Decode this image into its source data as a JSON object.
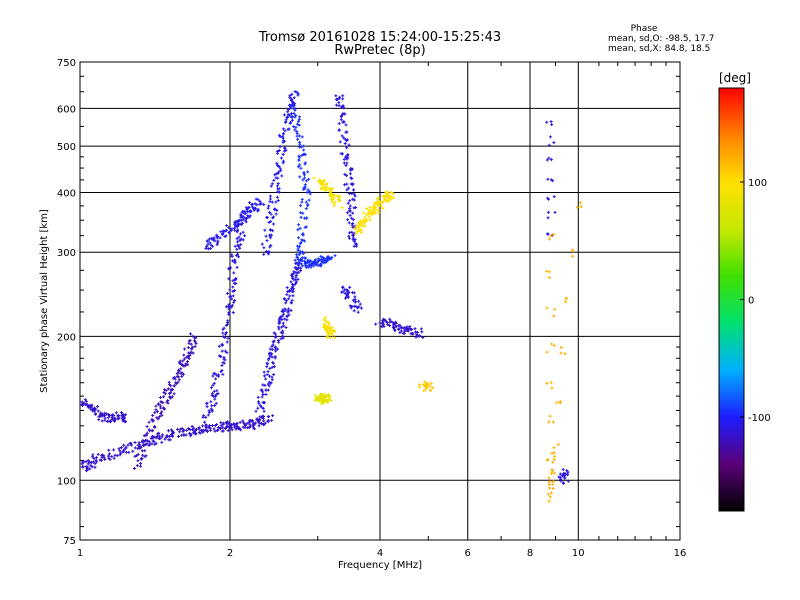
{
  "chart_data": {
    "type": "scatter",
    "title": "Tromsø 20161028 15:24:00-15:25:43",
    "subtitle": "RwPretec (8p)",
    "xlabel": "Frequency [MHz]",
    "ylabel": "Stationary phase Virtual Height [km]",
    "x_scale": "log",
    "y_scale": "log",
    "xlim": [
      1,
      16
    ],
    "ylim": [
      75,
      750
    ],
    "x_ticks": [
      1,
      2,
      4,
      6,
      8,
      10,
      16
    ],
    "x_ticklabels": [
      "1",
      "2",
      "4",
      "6",
      "8",
      "10",
      "16"
    ],
    "y_ticks": [
      75,
      100,
      200,
      300,
      400,
      500,
      600,
      750
    ],
    "y_ticklabels": [
      "75",
      "100",
      "200",
      "300",
      "400",
      "500",
      "600",
      "750"
    ],
    "grid": true,
    "phase_legend": {
      "title": "Phase",
      "line1": "mean, sd,O:  -98.5,  17.7",
      "line2": "mean, sd,X:  84.8,  18.5"
    },
    "colorbar": {
      "label": "[deg]",
      "range": [
        -180,
        180
      ],
      "ticks": [
        -100,
        0,
        100
      ],
      "ticklabels": [
        "-100",
        "0",
        "100"
      ],
      "colormap": [
        "#000000",
        "#5a007a",
        "#1d1dff",
        "#00b0ff",
        "#00e070",
        "#40e000",
        "#c8e800",
        "#ffe000",
        "#ff8000",
        "#ff0000"
      ]
    },
    "traces": [
      {
        "name": "",
        "phase": -115,
        "points": [
          [
            1.0,
            146
          ],
          [
            1.05,
            142
          ],
          [
            1.1,
            136
          ],
          [
            1.15,
            135
          ],
          [
            1.2,
            136
          ],
          [
            1.22,
            135
          ]
        ]
      },
      {
        "name": "",
        "phase": -115,
        "points": [
          [
            1.0,
            106
          ],
          [
            1.05,
            108
          ],
          [
            1.1,
            112
          ],
          [
            1.2,
            115
          ],
          [
            1.3,
            118
          ],
          [
            1.4,
            121
          ],
          [
            1.5,
            124
          ],
          [
            1.6,
            126
          ],
          [
            1.7,
            127
          ],
          [
            1.8,
            128
          ],
          [
            1.9,
            129
          ],
          [
            2.0,
            130
          ],
          [
            2.1,
            130
          ],
          [
            2.2,
            131
          ],
          [
            2.3,
            132
          ],
          [
            2.4,
            136
          ]
        ]
      },
      {
        "name": "",
        "phase": -120,
        "points": [
          [
            1.3,
            108
          ],
          [
            1.35,
            118
          ],
          [
            1.4,
            130
          ],
          [
            1.45,
            142
          ],
          [
            1.5,
            150
          ],
          [
            1.55,
            160
          ],
          [
            1.6,
            172
          ],
          [
            1.65,
            185
          ],
          [
            1.7,
            200
          ]
        ]
      },
      {
        "name": "",
        "phase": -110,
        "points": [
          [
            1.8,
            135
          ],
          [
            1.85,
            150
          ],
          [
            1.9,
            170
          ],
          [
            1.95,
            195
          ],
          [
            2.0,
            230
          ],
          [
            2.02,
            260
          ],
          [
            2.05,
            300
          ],
          [
            2.1,
            330
          ],
          [
            2.15,
            370
          ]
        ]
      },
      {
        "name": "",
        "phase": -110,
        "points": [
          [
            2.3,
            140
          ],
          [
            2.35,
            155
          ],
          [
            2.4,
            170
          ],
          [
            2.45,
            185
          ],
          [
            2.5,
            200
          ],
          [
            2.55,
            215
          ],
          [
            2.6,
            230
          ],
          [
            2.65,
            250
          ],
          [
            2.7,
            270
          ],
          [
            2.75,
            285
          ]
        ]
      },
      {
        "name": "",
        "phase": -105,
        "points": [
          [
            2.35,
            300
          ],
          [
            2.4,
            340
          ],
          [
            2.45,
            390
          ],
          [
            2.5,
            440
          ],
          [
            2.55,
            500
          ],
          [
            2.6,
            560
          ],
          [
            2.65,
            610
          ],
          [
            2.7,
            640
          ]
        ]
      },
      {
        "name": "",
        "phase": -95,
        "points": [
          [
            2.7,
            600
          ],
          [
            2.75,
            520
          ],
          [
            2.8,
            450
          ],
          [
            2.85,
            400
          ],
          [
            2.8,
            340
          ],
          [
            2.75,
            300
          ],
          [
            2.8,
            285
          ],
          [
            2.9,
            282
          ],
          [
            3.0,
            285
          ],
          [
            3.1,
            288
          ],
          [
            3.2,
            292
          ]
        ]
      },
      {
        "name": "",
        "phase": -110,
        "points": [
          [
            3.3,
            640
          ],
          [
            3.35,
            580
          ],
          [
            3.4,
            500
          ],
          [
            3.45,
            440
          ],
          [
            3.5,
            390
          ],
          [
            3.52,
            340
          ],
          [
            3.55,
            310
          ]
        ]
      },
      {
        "name": "",
        "phase": -105,
        "points": [
          [
            1.8,
            310
          ],
          [
            1.9,
            320
          ],
          [
            2.0,
            335
          ],
          [
            2.1,
            350
          ],
          [
            2.2,
            370
          ],
          [
            2.3,
            380
          ]
        ]
      },
      {
        "name": "",
        "phase": 95,
        "points": [
          [
            3.0,
            420
          ],
          [
            3.1,
            410
          ],
          [
            3.2,
            395
          ],
          [
            3.3,
            380
          ]
        ]
      },
      {
        "name": "",
        "phase": 100,
        "points": [
          [
            3.6,
            330
          ],
          [
            3.7,
            345
          ],
          [
            3.8,
            360
          ],
          [
            3.9,
            370
          ],
          [
            4.0,
            380
          ],
          [
            4.1,
            390
          ],
          [
            4.2,
            395
          ]
        ]
      },
      {
        "name": "",
        "phase": 95,
        "points": [
          [
            3.1,
            215
          ],
          [
            3.15,
            205
          ],
          [
            3.2,
            200
          ]
        ]
      },
      {
        "name": "",
        "phase": 80,
        "points": [
          [
            3.0,
            150
          ],
          [
            3.05,
            148
          ],
          [
            3.1,
            147
          ],
          [
            3.15,
            149
          ]
        ]
      },
      {
        "name": "",
        "phase": -110,
        "points": [
          [
            3.4,
            250
          ],
          [
            3.5,
            240
          ],
          [
            3.6,
            228
          ]
        ]
      },
      {
        "name": "",
        "phase": -115,
        "points": [
          [
            4.0,
            215
          ],
          [
            4.2,
            212
          ],
          [
            4.4,
            208
          ],
          [
            4.6,
            205
          ],
          [
            4.8,
            203
          ]
        ]
      },
      {
        "name": "",
        "phase": 110,
        "points": [
          [
            4.9,
            158
          ],
          [
            5.0,
            157
          ]
        ]
      },
      {
        "name": "",
        "phase": -110,
        "points": [
          [
            8.8,
            560
          ],
          [
            8.8,
            330
          ]
        ]
      },
      {
        "name": "",
        "phase": 120,
        "points": [
          [
            8.8,
            320
          ],
          [
            8.8,
            112
          ],
          [
            8.8,
            92
          ],
          [
            10.0,
            380
          ]
        ]
      },
      {
        "name": "",
        "phase": -110,
        "points": [
          [
            9.2,
            104
          ],
          [
            9.5,
            100
          ]
        ]
      }
    ]
  }
}
